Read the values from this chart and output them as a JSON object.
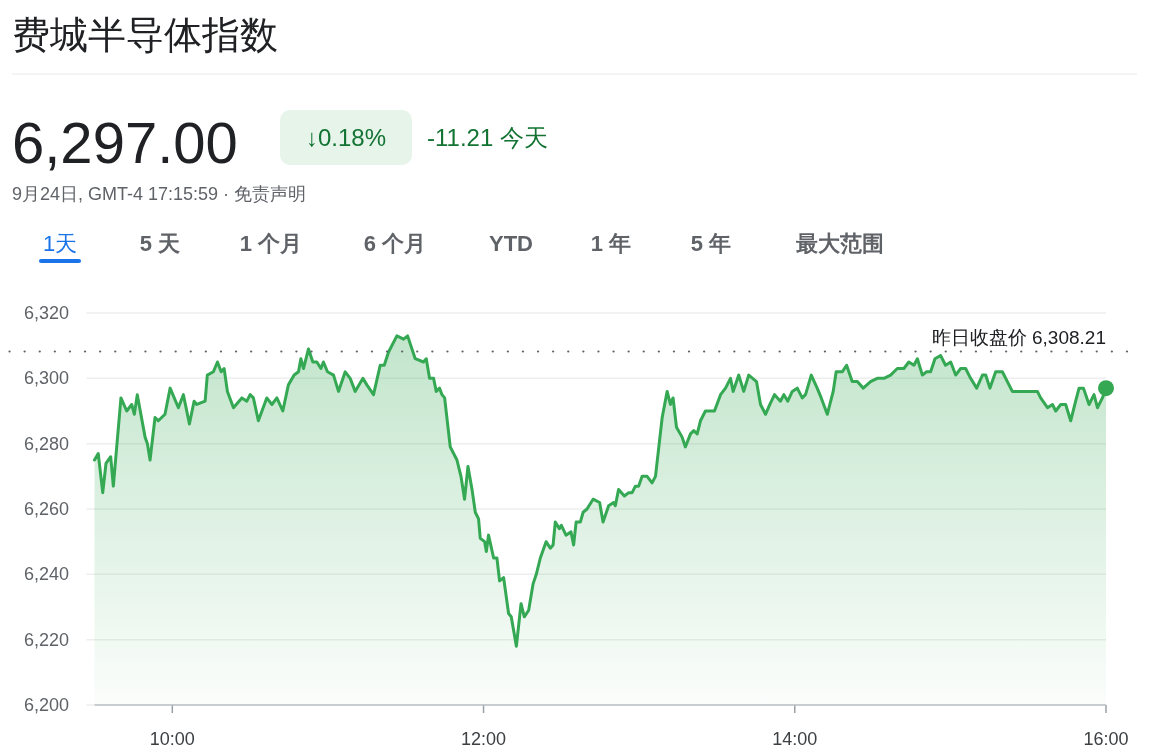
{
  "chart_data": {
    "type": "area",
    "title": "费城半导体指数",
    "annotations": [
      "6,297.00",
      "↓0.18%",
      "-11.21 今天",
      "9月24日, GMT-4 17:15:59 · 免责声明",
      "1天",
      "5 天",
      "1 个月",
      "6 个月",
      "YTD",
      "1 年",
      "5 年",
      "最大范围"
    ],
    "x": [
      9.5,
      9.524,
      9.553,
      9.574,
      9.604,
      9.621,
      9.67,
      9.707,
      9.739,
      9.756,
      9.775,
      9.825,
      9.84,
      9.857,
      9.889,
      9.91,
      9.953,
      9.986,
      10.039,
      10.071,
      10.11,
      10.14,
      10.157,
      10.211,
      10.225,
      10.264,
      10.29,
      10.314,
      10.333,
      10.354,
      10.393,
      10.447,
      10.479,
      10.5,
      10.521,
      10.553,
      10.607,
      10.64,
      10.672,
      10.71,
      10.746,
      10.783,
      10.811,
      10.826,
      10.843,
      10.875,
      10.903,
      10.929,
      10.955,
      10.971,
      10.997,
      11.036,
      11.068,
      11.111,
      11.143,
      11.175,
      11.225,
      11.25,
      11.293,
      11.336,
      11.362,
      11.389,
      11.443,
      11.486,
      11.512,
      11.561,
      11.614,
      11.632,
      11.653,
      11.679,
      11.696,
      11.717,
      11.733,
      11.75,
      11.786,
      11.829,
      11.855,
      11.878,
      11.9,
      11.926,
      11.947,
      11.968,
      11.979,
      12.007,
      12.018,
      12.032,
      12.065,
      12.086,
      12.103,
      12.129,
      12.161,
      12.178,
      12.211,
      12.241,
      12.262,
      12.29,
      12.318,
      12.339,
      12.365,
      12.402,
      12.429,
      12.447,
      12.461,
      12.487,
      12.5,
      12.53,
      12.562,
      12.579,
      12.595,
      12.622,
      12.64,
      12.665,
      12.704,
      12.746,
      12.768,
      12.804,
      12.836,
      12.847,
      12.868,
      12.905,
      12.933,
      12.955,
      12.976,
      12.997,
      13.019,
      13.051,
      13.083,
      13.105,
      13.148,
      13.18,
      13.201,
      13.218,
      13.24,
      13.276,
      13.297,
      13.33,
      13.351,
      13.373,
      13.394,
      13.426,
      13.458,
      13.484,
      13.523,
      13.555,
      13.587,
      13.604,
      13.64,
      13.672,
      13.704,
      13.754,
      13.78,
      13.812,
      13.84,
      13.87,
      13.908,
      13.93,
      13.955,
      13.984,
      14.016,
      14.048,
      14.069,
      14.106,
      14.144,
      14.17,
      14.209,
      14.247,
      14.266,
      14.305,
      14.333,
      14.369,
      14.402,
      14.44,
      14.487,
      14.53,
      14.573,
      14.616,
      14.659,
      14.701,
      14.733,
      14.766,
      14.788,
      14.82,
      14.847,
      14.873,
      14.901,
      14.937,
      14.969,
      15.002,
      15.034,
      15.066,
      15.098,
      15.13,
      15.169,
      15.206,
      15.227,
      15.254,
      15.291,
      15.334,
      15.398,
      15.452,
      15.516,
      15.559,
      15.58,
      15.624,
      15.656,
      15.677,
      15.709,
      15.741,
      15.773,
      15.805,
      15.827,
      15.855,
      15.891,
      15.923,
      15.945,
      15.977,
      16
    ],
    "series": [
      {
        "color": "#34a853",
        "values": [
          6275,
          6277,
          6265,
          6274,
          6276,
          6267,
          6294,
          6290,
          6292,
          6289,
          6295,
          6282,
          6280,
          6275,
          6288,
          6287,
          6289,
          6297,
          6291,
          6295,
          6286,
          6293,
          6292,
          6293,
          6301,
          6302,
          6305,
          6302,
          6303,
          6296,
          6291,
          6294,
          6293,
          6295,
          6294,
          6287,
          6294,
          6292,
          6294,
          6290,
          6298,
          6301,
          6302,
          6306,
          6303,
          6309,
          6305,
          6305,
          6303,
          6305,
          6302,
          6301,
          6296,
          6302,
          6300,
          6296,
          6300,
          6298,
          6295,
          6304,
          6304,
          6308,
          6313,
          6312,
          6313,
          6306,
          6305,
          6306,
          6300,
          6300,
          6296,
          6297,
          6295,
          6294,
          6279,
          6275,
          6270,
          6263,
          6273,
          6266,
          6259,
          6257,
          6251,
          6250,
          6247,
          6252,
          6245,
          6245,
          6238,
          6239,
          6228,
          6227,
          6218,
          6231,
          6227,
          6229,
          6237,
          6240,
          6245,
          6250,
          6248,
          6249,
          6256,
          6254,
          6255,
          6252,
          6253,
          6249,
          6256,
          6256,
          6259,
          6260,
          6263,
          6262,
          6256,
          6261,
          6262,
          6261,
          6266,
          6264,
          6265,
          6265,
          6267,
          6267,
          6270,
          6270,
          6268,
          6270,
          6288,
          6296,
          6292,
          6294,
          6285,
          6282,
          6279,
          6283,
          6284,
          6283,
          6287,
          6290,
          6290,
          6290,
          6295,
          6297,
          6300,
          6296,
          6301,
          6296,
          6301,
          6299,
          6292,
          6289,
          6292,
          6295,
          6293,
          6295,
          6293,
          6296,
          6297,
          6294,
          6295,
          6301,
          6297,
          6294,
          6289,
          6296,
          6302,
          6302,
          6304,
          6299,
          6299,
          6297,
          6299,
          6300,
          6300,
          6301,
          6303,
          6303,
          6305,
          6304,
          6306,
          6301,
          6302,
          6302,
          6306,
          6307,
          6304,
          6305,
          6301,
          6303,
          6303,
          6300,
          6297,
          6301,
          6301,
          6297,
          6302,
          6302,
          6296,
          6296,
          6296,
          6296,
          6294,
          6291,
          6292,
          6290,
          6292,
          6292,
          6287,
          6293,
          6297,
          6297,
          6292,
          6295,
          6291,
          6294,
          6297
        ]
      }
    ],
    "xlim": [
      9.5,
      16
    ],
    "ylim": [
      6200,
      6320
    ],
    "xticks": [
      {
        "value": 10,
        "label": "10:00"
      },
      {
        "value": 12,
        "label": "12:00"
      },
      {
        "value": 14,
        "label": "14:00"
      },
      {
        "value": 16,
        "label": "16:00"
      }
    ],
    "yticks": [
      {
        "value": 6200,
        "label": "6,200"
      },
      {
        "value": 6220,
        "label": "6,220"
      },
      {
        "value": 6240,
        "label": "6,240"
      },
      {
        "value": 6260,
        "label": "6,260"
      },
      {
        "value": 6280,
        "label": "6,280"
      },
      {
        "value": 6300,
        "label": "6,300"
      },
      {
        "value": 6320,
        "label": "6,320"
      }
    ],
    "ref_lines": [
      {
        "axis": "y",
        "value": 6308.21,
        "label": "昨日收盘价 6,308.21",
        "color": "#5f6368",
        "line_style": "dotted"
      }
    ],
    "grid": "y"
  }
}
